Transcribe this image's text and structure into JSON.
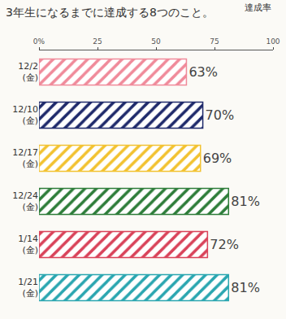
{
  "chart_data": {
    "type": "bar",
    "orientation": "horizontal",
    "title": "3年生になるまでに達成する8つのこと。",
    "subtitle": "達成率",
    "categories": [
      "12/2 (金)",
      "12/10 (金)",
      "12/17 (金)",
      "12/24 (金)",
      "1/14 (金)",
      "1/21 (金)"
    ],
    "values": [
      63,
      70,
      69,
      81,
      72,
      81
    ],
    "value_labels": [
      "63%",
      "70%",
      "69%",
      "81%",
      "72%",
      "81%"
    ],
    "colors": [
      "#f08a9a",
      "#1f2a6b",
      "#f2c230",
      "#2e7d3a",
      "#d9435a",
      "#2aa6b0"
    ],
    "xlim": [
      0,
      100
    ],
    "xticks": [
      {
        "value": 0,
        "label": "0%"
      },
      25,
      50,
      75,
      100
    ],
    "grid": false,
    "data_labels": true
  }
}
